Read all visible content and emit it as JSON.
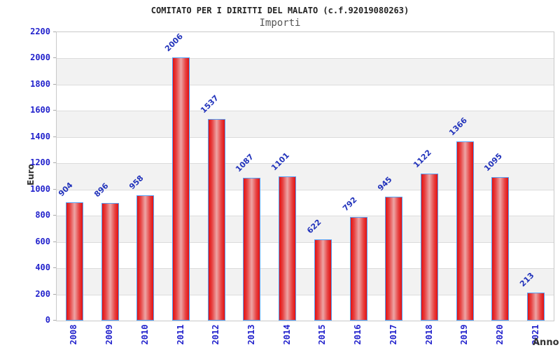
{
  "header": {
    "title": "COMITATO PER I DIRITTI DEL MALATO (c.f.92019080263)",
    "subtitle": "Importi"
  },
  "chart_data": {
    "type": "bar",
    "title": "COMITATO PER I DIRITTI DEL MALATO (c.f.92019080263)",
    "subtitle": "Importi",
    "xlabel": "Anno",
    "ylabel": "Euro",
    "categories": [
      "2008",
      "2009",
      "2010",
      "2011",
      "2012",
      "2013",
      "2014",
      "2015",
      "2016",
      "2017",
      "2018",
      "2019",
      "2020",
      "2021"
    ],
    "values": [
      904,
      896,
      958,
      2006,
      1537,
      1087,
      1101,
      622,
      792,
      945,
      1122,
      1366,
      1095,
      213
    ],
    "ylim": [
      0,
      2200
    ],
    "ytick_step": 200,
    "grid": "horizontal-bands-alternating",
    "legend": "none",
    "colors": {
      "bar_edge": "#e31111",
      "bar_mid": "#eda5a5",
      "bar_border": "#55a0f5",
      "value_label": "#2233bb",
      "tick_label": "#2222cc",
      "band": "#f2f2f2",
      "gridline": "#dcdcdc",
      "plot_border": "#c9c9c9",
      "title": "#222222",
      "subtitle": "#555555",
      "axis_title": "#333333"
    }
  }
}
